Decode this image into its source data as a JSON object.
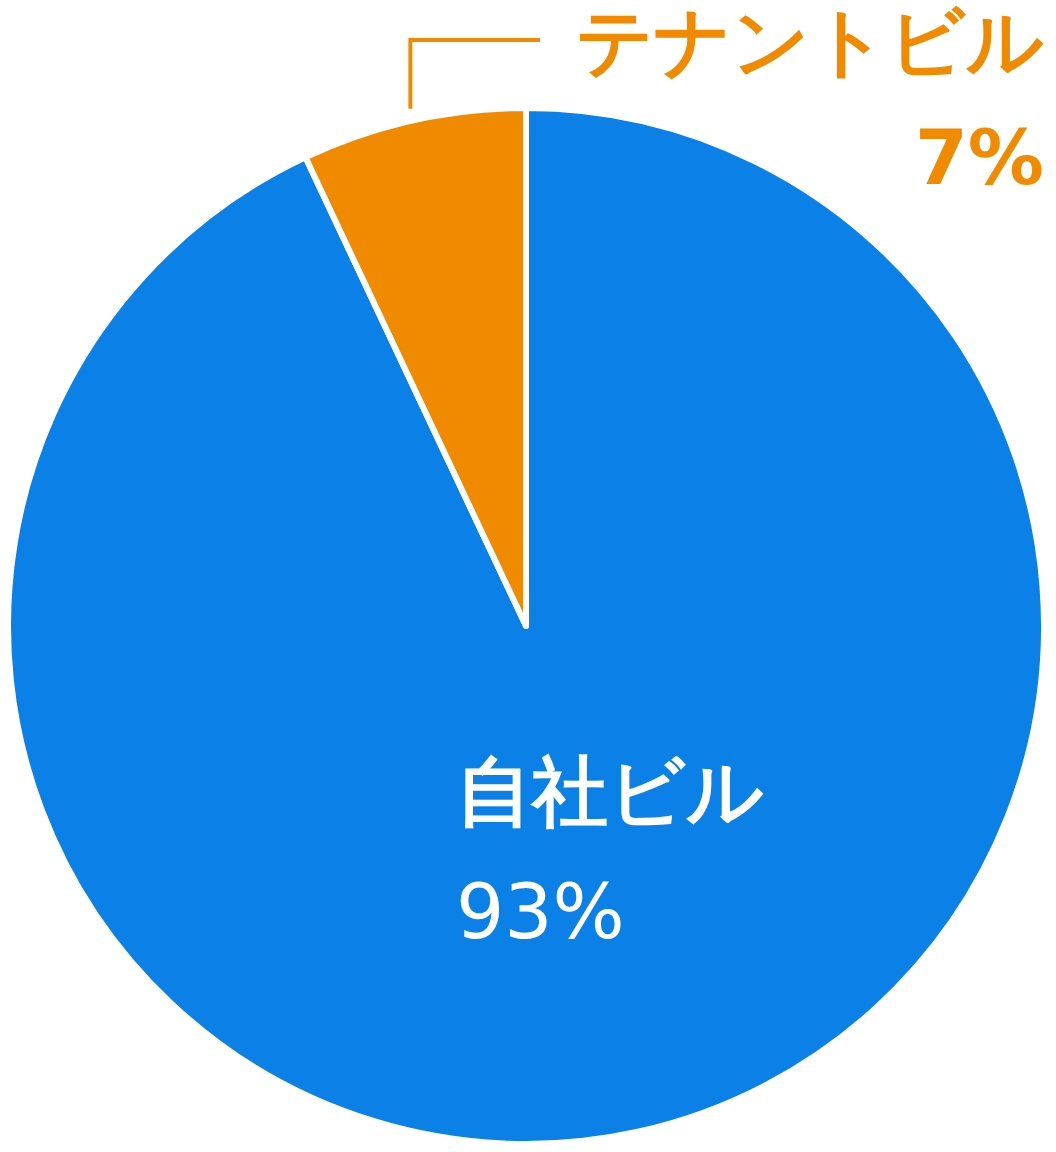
{
  "chart_data": {
    "type": "pie",
    "categories": [
      "自社ビル",
      "テナントビル"
    ],
    "values": [
      93,
      7
    ],
    "value_labels": [
      "93%",
      "7%"
    ],
    "colors": [
      "#0b80e6",
      "#f08a00"
    ]
  }
}
